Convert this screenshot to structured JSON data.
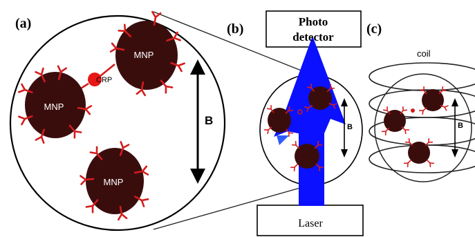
{
  "panels": {
    "a": {
      "label": "(a)"
    },
    "b": {
      "label": "(b)"
    },
    "c": {
      "label": "(c)"
    }
  },
  "particles": {
    "mnp_label": "MNP",
    "crp_label": "CRP"
  },
  "field": {
    "label": "B"
  },
  "photodetector": {
    "line1": "Photo",
    "line2": "detector"
  },
  "laser": {
    "label": "Laser"
  },
  "coil": {
    "label": "coil"
  },
  "colors": {
    "particle_fill": "#3a0d0d",
    "antibody": "#d41c1c",
    "crp_fill": "#e81818",
    "laser_beam": "#0b10ff",
    "laser_tail": "#2f5bff",
    "outline": "#111111"
  },
  "icons": {
    "field_arrow": "double-headed-arrow",
    "light_beam": "upward-arrow"
  }
}
